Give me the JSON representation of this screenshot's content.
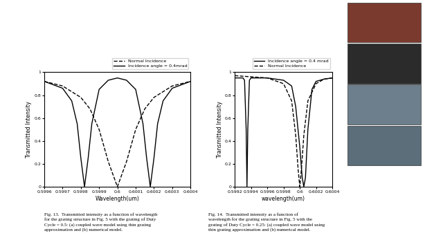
{
  "chart_data": [
    {
      "type": "line",
      "x_label": "Wavelength(um)",
      "y_label": "Transmitted Intensity",
      "caption": "Fig. 13.  Transmitted intensity as a function of wavelength for the grating structure in Fig. 5 with the grating of Duty Cycle = 0.5: (a) coupled wave model using thin grating approximation and (b) numerical model.",
      "xlim": [
        0.5996,
        0.6004
      ],
      "xticks": [
        0.5996,
        0.5997,
        0.5998,
        0.5999,
        0.6,
        0.6001,
        0.6002,
        0.6003,
        0.6004
      ],
      "ylim": [
        0,
        1
      ],
      "yticks": [
        0,
        0.2,
        0.4,
        0.6,
        0.8,
        1
      ],
      "legend": "lower right",
      "series": [
        {
          "name": "Normal Incidence",
          "color": "#000000",
          "line_style": "dashed",
          "x": [
            0.5996,
            0.5997,
            0.5998,
            0.59985,
            0.5999,
            0.59995,
            0.6,
            0.60005,
            0.6001,
            0.60015,
            0.6002,
            0.6003,
            0.6004
          ],
          "values": [
            0.92,
            0.88,
            0.78,
            0.68,
            0.5,
            0.22,
            0.0,
            0.22,
            0.5,
            0.68,
            0.78,
            0.88,
            0.92
          ]
        },
        {
          "name": "Incidence angle = 0.4mrad",
          "color": "#000000",
          "line_style": "solid",
          "x": [
            0.5996,
            0.5997,
            0.59975,
            0.59978,
            0.5998,
            0.59982,
            0.59984,
            0.59986,
            0.5999,
            0.59995,
            0.6,
            0.60005,
            0.6001,
            0.60014,
            0.60016,
            0.60018,
            0.6002,
            0.60022,
            0.60025,
            0.6003,
            0.6004
          ],
          "values": [
            0.92,
            0.86,
            0.75,
            0.55,
            0.25,
            0.0,
            0.25,
            0.55,
            0.85,
            0.93,
            0.95,
            0.93,
            0.85,
            0.55,
            0.25,
            0.0,
            0.25,
            0.55,
            0.75,
            0.86,
            0.92
          ]
        }
      ]
    },
    {
      "type": "line",
      "x_label": "wavelength(um)",
      "y_label": "Transmitted Intensity",
      "caption": "Fig. 14.  Transmitted intensity as a function of wavelength for the grating structure in Fig. 5 with the grating of Duty Cycle = 0.25: (a) coupled wave model using thin grating approximation and (b) numerical model.",
      "xlim": [
        0.5992,
        0.6004
      ],
      "xticks": [
        0.5992,
        0.5994,
        0.5996,
        0.5998,
        0.6,
        0.6002,
        0.6004
      ],
      "ylim": [
        0,
        1
      ],
      "yticks": [
        0,
        0.2,
        0.4,
        0.6,
        0.8,
        1
      ],
      "legend": "lower right",
      "series": [
        {
          "name": "Incidence angle = 0.4 mrad",
          "color": "#000000",
          "line_style": "solid",
          "x": [
            0.5992,
            0.5993,
            0.59932,
            0.59934,
            0.59935,
            0.59936,
            0.59938,
            0.5994,
            0.5996,
            0.5998,
            0.5999,
            0.59995,
            0.6,
            0.60003,
            0.60005,
            0.60007,
            0.6001,
            0.60015,
            0.6002,
            0.6003,
            0.6004
          ],
          "values": [
            0.95,
            0.95,
            0.93,
            0.5,
            0.0,
            0.5,
            0.93,
            0.95,
            0.95,
            0.93,
            0.88,
            0.7,
            0.35,
            0.08,
            0.0,
            0.08,
            0.5,
            0.85,
            0.92,
            0.94,
            0.95
          ]
        },
        {
          "name": "Normal Incidence",
          "color": "#000000",
          "line_style": "dashed",
          "x": [
            0.5992,
            0.5994,
            0.5996,
            0.5998,
            0.5999,
            0.59995,
            0.59998,
            0.6,
            0.60002,
            0.60005,
            0.6001,
            0.6002,
            0.6003,
            0.6004
          ],
          "values": [
            0.97,
            0.96,
            0.95,
            0.9,
            0.75,
            0.45,
            0.15,
            0.0,
            0.15,
            0.45,
            0.75,
            0.9,
            0.94,
            0.95
          ]
        }
      ]
    }
  ]
}
